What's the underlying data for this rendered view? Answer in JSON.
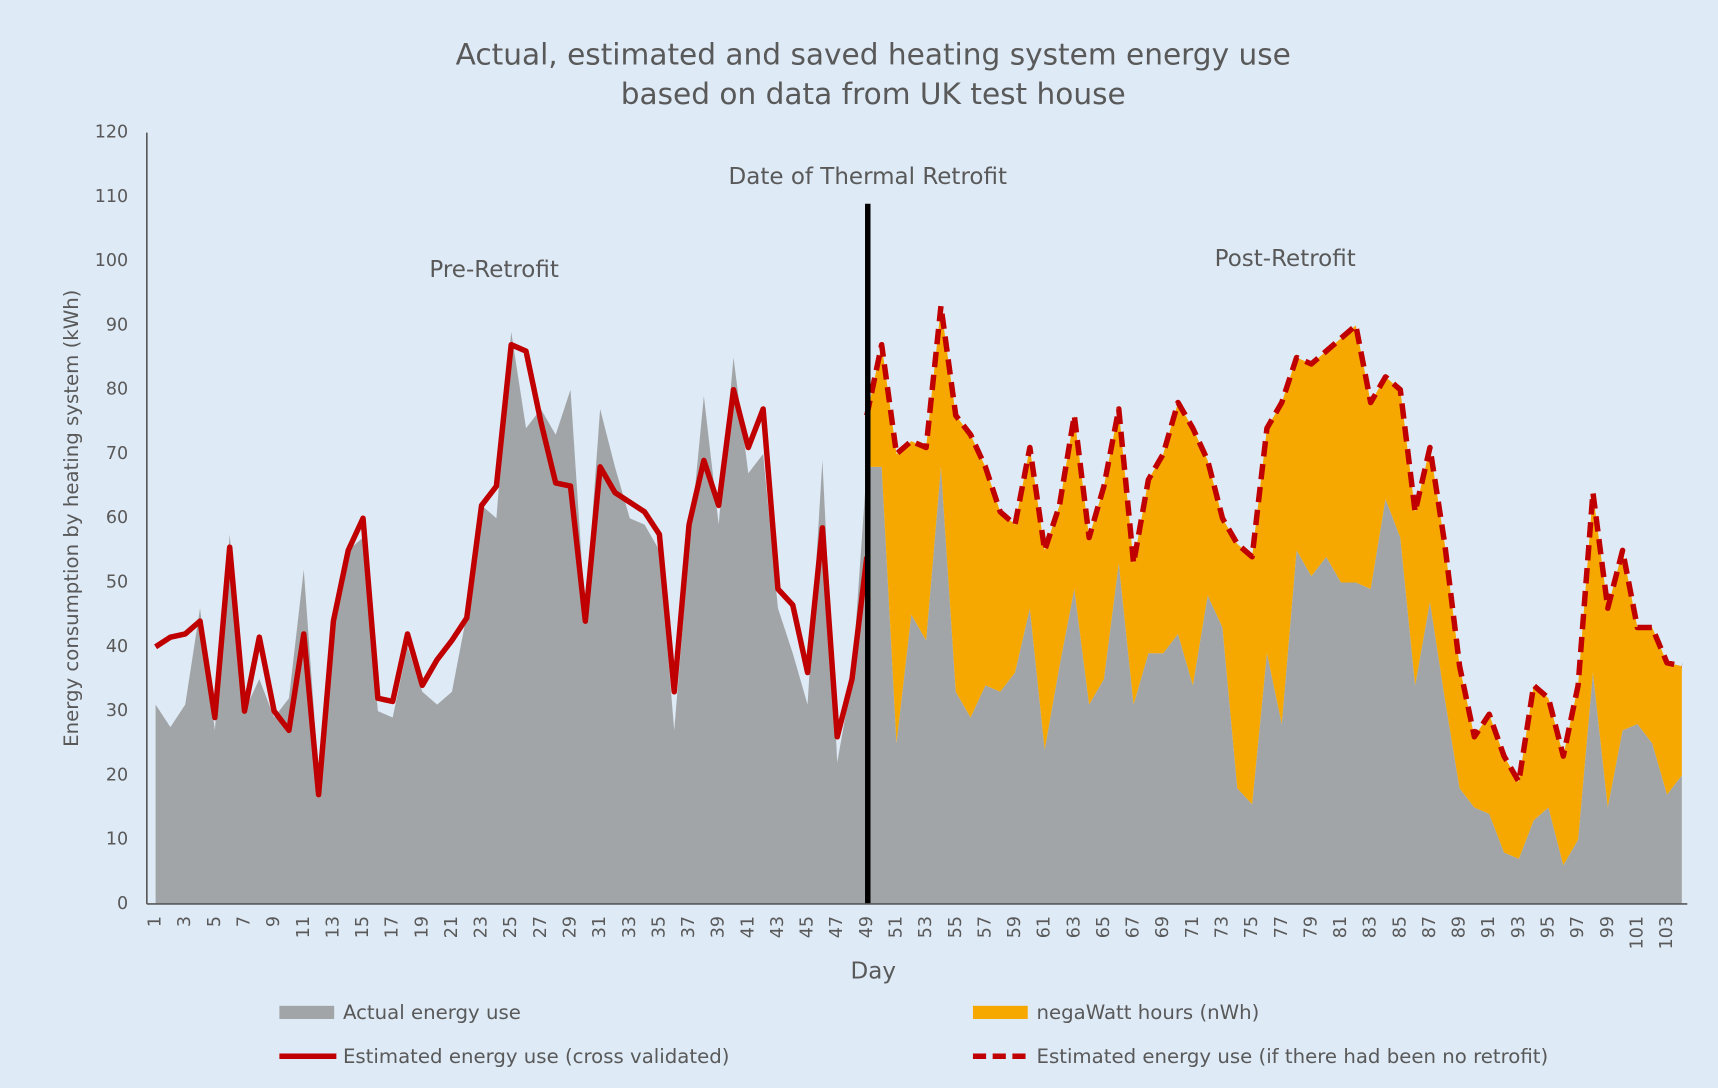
{
  "chart_data": {
    "type": "area",
    "title": "Actual, estimated and saved heating system energy use",
    "subtitle": "based on data from UK test house",
    "y_label": "Energy consumption by heating system (kWh)",
    "x_label": "Day",
    "annotations": [
      "Date of Thermal Retrofit",
      "Pre-Retrofit",
      "Post-Retrofit"
    ],
    "categories": [
      1,
      null,
      3,
      null,
      5,
      null,
      7,
      null,
      9,
      null,
      11,
      null,
      13,
      null,
      15,
      null,
      17,
      null,
      19,
      null,
      21,
      null,
      23,
      null,
      25,
      null,
      27,
      null,
      29,
      null,
      31,
      null,
      33,
      null,
      35,
      null,
      37,
      null,
      39,
      null,
      41,
      null,
      43,
      null,
      45,
      null,
      47,
      null,
      49,
      null,
      51,
      null,
      53,
      null,
      55,
      null,
      57,
      null,
      59,
      null,
      61,
      null,
      63,
      null,
      65,
      null,
      67,
      null,
      69,
      null,
      71,
      null,
      73,
      null,
      75,
      null,
      77,
      null,
      79,
      null,
      81,
      null,
      83,
      null,
      85,
      null,
      87,
      null,
      89,
      null,
      91,
      null,
      93,
      null,
      95,
      null,
      97,
      null,
      99,
      null,
      101,
      null,
      103,
      null
    ],
    "ylim": [
      0,
      120
    ],
    "yticks": [
      0,
      10,
      20,
      30,
      40,
      50,
      60,
      70,
      80,
      90,
      100,
      110,
      120
    ],
    "grid": false,
    "legend": "bottom",
    "series": [
      {
        "name": "Actual energy use",
        "color": "#a2a5a7",
        "kind": "area",
        "values": [
          31,
          27.5,
          31,
          46,
          27,
          57.5,
          30,
          35,
          29,
          32,
          52,
          20,
          45,
          55,
          57,
          30,
          29,
          40,
          33,
          31,
          33,
          45,
          62,
          60,
          89,
          74,
          77,
          73,
          80,
          45,
          77,
          68,
          60,
          59,
          55,
          27,
          55,
          79,
          59,
          85,
          67,
          70,
          46,
          39,
          31,
          69,
          22,
          35,
          68,
          68,
          25,
          45,
          41,
          68,
          33,
          29,
          34,
          33,
          36,
          46,
          24,
          37,
          49,
          31,
          35,
          53,
          31,
          39,
          39,
          42,
          34,
          48,
          43,
          18,
          15.5,
          39,
          28,
          55,
          51,
          54,
          50,
          50,
          49,
          63,
          57,
          34,
          47,
          32,
          18,
          15,
          14,
          8,
          7,
          13,
          15,
          6,
          10,
          36,
          15,
          27,
          28,
          25,
          17,
          20
        ]
      },
      {
        "name": "negaWatt hours (nWh)",
        "color": "#f7a800",
        "kind": "area",
        "stacked": true,
        "values": [
          null,
          null,
          null,
          null,
          null,
          null,
          null,
          null,
          null,
          null,
          null,
          null,
          null,
          null,
          null,
          null,
          null,
          null,
          null,
          null,
          null,
          null,
          null,
          null,
          null,
          null,
          null,
          null,
          null,
          null,
          null,
          null,
          null,
          null,
          null,
          null,
          null,
          null,
          null,
          null,
          null,
          null,
          null,
          null,
          null,
          null,
          null,
          null,
          8,
          19,
          45,
          27,
          30,
          25,
          43,
          44,
          34,
          28,
          23,
          25,
          31,
          25,
          27,
          26,
          30,
          24,
          22,
          27,
          31,
          36,
          40,
          21,
          17,
          38,
          38.5,
          35,
          50,
          30,
          33,
          32,
          38,
          40,
          29,
          19,
          23,
          27,
          24,
          24,
          19,
          11,
          15.5,
          15,
          12,
          21,
          17,
          17,
          24,
          28,
          31,
          28,
          15,
          18,
          20.5,
          17
        ]
      },
      {
        "name": "Estimated energy use (cross validated)",
        "color": "#c00000",
        "kind": "line",
        "values": [
          40,
          41.5,
          42,
          44,
          29,
          55.5,
          30,
          41.5,
          30,
          27,
          42,
          17,
          44,
          55,
          60,
          32,
          31.5,
          42,
          34,
          38,
          41,
          44.5,
          62,
          65,
          87,
          86,
          75,
          65.5,
          65,
          44,
          68,
          64,
          62.5,
          61,
          57.5,
          33,
          59,
          69,
          62,
          80,
          71,
          77,
          49,
          46.5,
          36,
          58.5,
          26,
          35,
          54,
          null,
          null,
          null,
          null,
          null,
          null,
          null,
          null,
          null,
          null,
          null,
          null,
          null,
          null,
          null,
          null,
          null,
          null,
          null,
          null,
          null,
          null,
          null,
          null,
          null,
          null,
          null,
          null,
          null,
          null,
          null,
          null,
          null,
          null,
          null,
          null,
          null,
          null,
          null,
          null,
          null,
          null,
          null,
          null,
          null,
          null,
          null,
          null,
          null,
          null,
          null,
          null,
          null,
          null,
          null
        ]
      },
      {
        "name": "Estimated energy use (if there had been no retrofit)",
        "color": "#c00000",
        "kind": "line",
        "dashed": true,
        "values": [
          null,
          null,
          null,
          null,
          null,
          null,
          null,
          null,
          null,
          null,
          null,
          null,
          null,
          null,
          null,
          null,
          null,
          null,
          null,
          null,
          null,
          null,
          null,
          null,
          null,
          null,
          null,
          null,
          null,
          null,
          null,
          null,
          null,
          null,
          null,
          null,
          null,
          null,
          null,
          null,
          null,
          null,
          null,
          null,
          null,
          null,
          null,
          null,
          76,
          87,
          70,
          72,
          71,
          93,
          76,
          73,
          68,
          61,
          59,
          71,
          55,
          62,
          76,
          57,
          65,
          77,
          53,
          66,
          70,
          78,
          74,
          69,
          60,
          56,
          54,
          74,
          78,
          85,
          84,
          86,
          88,
          90,
          78,
          82,
          80,
          61,
          71,
          56,
          37,
          26,
          29.5,
          23,
          19,
          34,
          32,
          23,
          34,
          64,
          46,
          55,
          43,
          43,
          37.5,
          37
        ]
      }
    ]
  }
}
